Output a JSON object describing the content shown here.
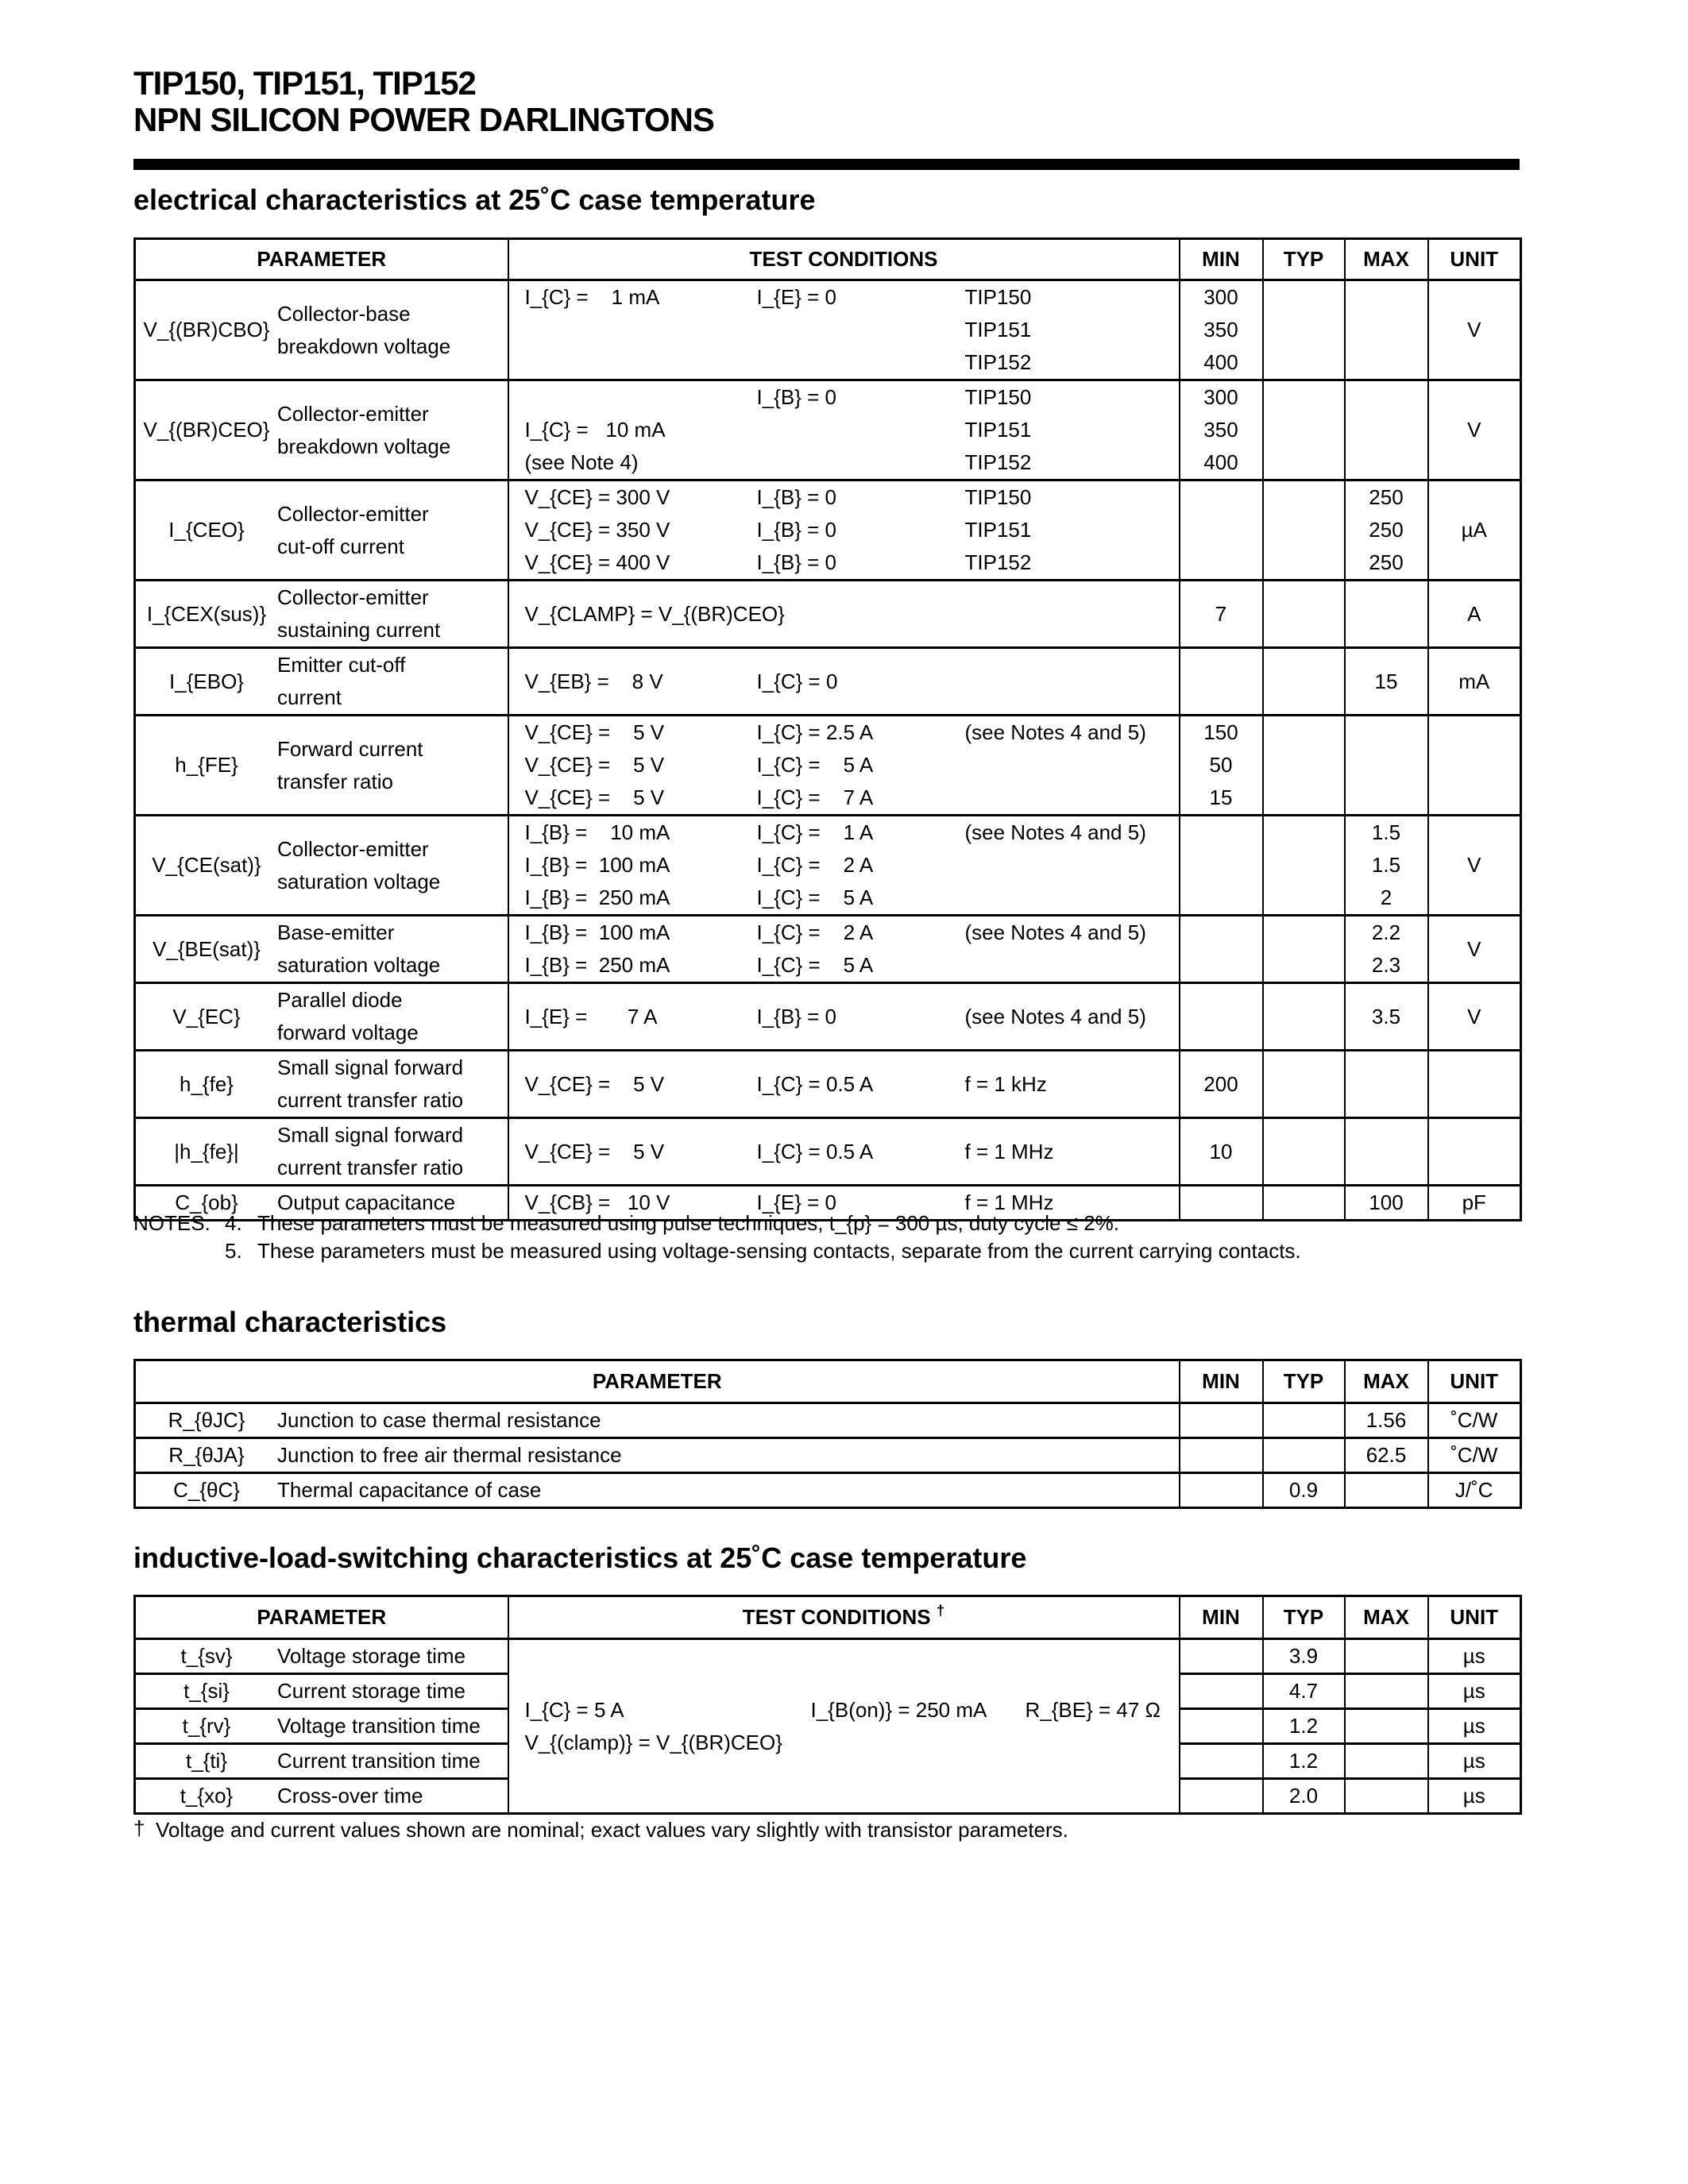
{
  "header": {
    "title_line1": "TIP150, TIP151, TIP152",
    "title_line2": "NPN SILICON POWER DARLINGTONS"
  },
  "electrical": {
    "heading": "electrical characteristics at 25˚C case temperature",
    "columns": [
      "PARAMETER",
      "TEST CONDITIONS",
      "MIN",
      "TYP",
      "MAX",
      "UNIT"
    ],
    "rows": [
      {
        "sym": "V_{(BR)CBO}",
        "param": [
          "Collector-base",
          "breakdown voltage"
        ],
        "c1": [
          "I_{C} =    1 mA"
        ],
        "c2": [
          "I_{E} = 0"
        ],
        "c3": [
          "TIP150",
          "TIP151",
          "TIP152"
        ],
        "min": [
          "300",
          "350",
          "400"
        ],
        "typ": [],
        "max": [],
        "unit": "V"
      },
      {
        "sym": "V_{(BR)CEO}",
        "param": [
          "Collector-emitter",
          "breakdown voltage"
        ],
        "c1": [
          "",
          "I_{C} =   10 mA",
          "(see Note 4)"
        ],
        "c2": [
          "I_{B} = 0"
        ],
        "c3": [
          "TIP150",
          "TIP151",
          "TIP152"
        ],
        "min": [
          "300",
          "350",
          "400"
        ],
        "typ": [],
        "max": [],
        "unit": "V"
      },
      {
        "sym": "I_{CEO}",
        "param": [
          "Collector-emitter",
          "cut-off current"
        ],
        "c1": [
          "V_{CE} = 300 V",
          "V_{CE} = 350 V",
          "V_{CE} = 400 V"
        ],
        "c2": [
          "I_{B} = 0",
          "I_{B} = 0",
          "I_{B} = 0"
        ],
        "c3": [
          "TIP150",
          "TIP151",
          "TIP152"
        ],
        "min": [],
        "typ": [],
        "max": [
          "250",
          "250",
          "250"
        ],
        "unit": "µA"
      },
      {
        "sym": "I_{CEX(sus)}",
        "param": [
          "Collector-emitter",
          "sustaining current"
        ],
        "c1": [
          "V_{CLAMP} = V_{(BR)CEO}"
        ],
        "c2": [],
        "c3": [],
        "min": [
          "7"
        ],
        "typ": [],
        "max": [],
        "unit": "A"
      },
      {
        "sym": "I_{EBO}",
        "param": [
          "Emitter cut-off",
          "current"
        ],
        "c1": [
          "V_{EB} =    8 V"
        ],
        "c2": [
          "I_{C} = 0"
        ],
        "c3": [],
        "min": [],
        "typ": [],
        "max": [
          "15"
        ],
        "unit": "mA"
      },
      {
        "sym": "h_{FE}",
        "param": [
          "Forward current",
          "transfer ratio"
        ],
        "c1": [
          "V_{CE} =    5 V",
          "V_{CE} =    5 V",
          "V_{CE} =    5 V"
        ],
        "c2": [
          "I_{C} = 2.5 A",
          "I_{C} =    5 A",
          "I_{C} =    7 A"
        ],
        "c3": [
          "(see Notes 4 and 5)"
        ],
        "min": [
          "150",
          "50",
          "15"
        ],
        "typ": [],
        "max": [],
        "unit": ""
      },
      {
        "sym": "V_{CE(sat)}",
        "param": [
          "Collector-emitter",
          "saturation voltage"
        ],
        "c1": [
          "I_{B} =    10 mA",
          "I_{B} =  100 mA",
          "I_{B} =  250 mA"
        ],
        "c2": [
          "I_{C} =    1 A",
          "I_{C} =    2 A",
          "I_{C} =    5 A"
        ],
        "c3": [
          "(see Notes 4 and 5)"
        ],
        "min": [],
        "typ": [],
        "max": [
          "1.5",
          "1.5",
          "2"
        ],
        "unit": "V"
      },
      {
        "sym": "V_{BE(sat)}",
        "param": [
          "Base-emitter",
          "saturation voltage"
        ],
        "c1": [
          "I_{B} =  100 mA",
          "I_{B} =  250 mA"
        ],
        "c2": [
          "I_{C} =    2 A",
          "I_{C} =    5 A"
        ],
        "c3": [
          "(see Notes 4 and 5)"
        ],
        "min": [],
        "typ": [],
        "max": [
          "2.2",
          "2.3"
        ],
        "unit": "V"
      },
      {
        "sym": "V_{EC}",
        "param": [
          "Parallel diode",
          "forward voltage"
        ],
        "c1": [
          "I_{E} =       7 A"
        ],
        "c2": [
          "I_{B} = 0"
        ],
        "c3": [
          "(see Notes 4 and 5)"
        ],
        "min": [],
        "typ": [],
        "max": [
          "3.5"
        ],
        "unit": "V"
      },
      {
        "sym": "h_{fe}",
        "param": [
          "Small signal forward",
          "current transfer ratio"
        ],
        "c1": [
          "V_{CE} =    5 V"
        ],
        "c2": [
          "I_{C} = 0.5 A"
        ],
        "c3": [
          "f = 1 kHz"
        ],
        "min": [
          "200"
        ],
        "typ": [],
        "max": [],
        "unit": ""
      },
      {
        "sym": "|h_{fe}|",
        "param": [
          "Small signal forward",
          "current transfer ratio"
        ],
        "c1": [
          "V_{CE} =    5 V"
        ],
        "c2": [
          "I_{C} = 0.5 A"
        ],
        "c3": [
          "f = 1 MHz"
        ],
        "min": [
          "10"
        ],
        "typ": [],
        "max": [],
        "unit": ""
      },
      {
        "sym": "C_{ob}",
        "param": [
          "Output capacitance"
        ],
        "c1": [
          "V_{CB} =   10 V"
        ],
        "c2": [
          "I_{E} = 0"
        ],
        "c3": [
          "f = 1 MHz"
        ],
        "min": [],
        "typ": [],
        "max": [
          "100"
        ],
        "unit": "pF"
      }
    ],
    "notes_label": "NOTES:",
    "notes": [
      {
        "num": "4.",
        "text": "These parameters must be measured using pulse techniques, t_{p} = 300 µs, duty cycle ≤ 2%."
      },
      {
        "num": "5.",
        "text": "These parameters must be measured using voltage-sensing contacts, separate from the current carrying contacts."
      }
    ]
  },
  "thermal": {
    "heading": "thermal characteristics",
    "columns": [
      "PARAMETER",
      "MIN",
      "TYP",
      "MAX",
      "UNIT"
    ],
    "rows": [
      {
        "sym": "R_{θJC}",
        "param": "Junction to case thermal resistance",
        "min": "",
        "typ": "",
        "max": "1.56",
        "unit": "˚C/W"
      },
      {
        "sym": "R_{θJA}",
        "param": "Junction to free air thermal resistance",
        "min": "",
        "typ": "",
        "max": "62.5",
        "unit": "˚C/W"
      },
      {
        "sym": "C_{θC}",
        "param": "Thermal capacitance of case",
        "min": "",
        "typ": "0.9",
        "max": "",
        "unit": "J/˚C"
      }
    ]
  },
  "inductive": {
    "heading": "inductive-load-switching characteristics at 25˚C case temperature",
    "columns": [
      "PARAMETER",
      "TEST CONDITIONS ^{†}",
      "MIN",
      "TYP",
      "MAX",
      "UNIT"
    ],
    "conditions": {
      "c1": [
        "I_{C} = 5 A",
        "V_{(clamp)} = V_{(BR)CEO}"
      ],
      "c2": [
        "I_{B(on)} = 250 mA"
      ],
      "c3": [
        "R_{BE} = 47 Ω"
      ]
    },
    "rows": [
      {
        "sym": "t_{sv}",
        "param": "Voltage storage time",
        "min": "",
        "typ": "3.9",
        "max": "",
        "unit": "µs"
      },
      {
        "sym": "t_{si}",
        "param": "Current storage time",
        "min": "",
        "typ": "4.7",
        "max": "",
        "unit": "µs"
      },
      {
        "sym": "t_{rv}",
        "param": "Voltage transition time",
        "min": "",
        "typ": "1.2",
        "max": "",
        "unit": "µs"
      },
      {
        "sym": "t_{ti}",
        "param": "Current transition time",
        "min": "",
        "typ": "1.2",
        "max": "",
        "unit": "µs"
      },
      {
        "sym": "t_{xo}",
        "param": "Cross-over time",
        "min": "",
        "typ": "2.0",
        "max": "",
        "unit": "µs"
      }
    ],
    "footnote_mark": "†",
    "footnote": "Voltage and current values shown are nominal; exact values vary slightly with transistor parameters."
  }
}
